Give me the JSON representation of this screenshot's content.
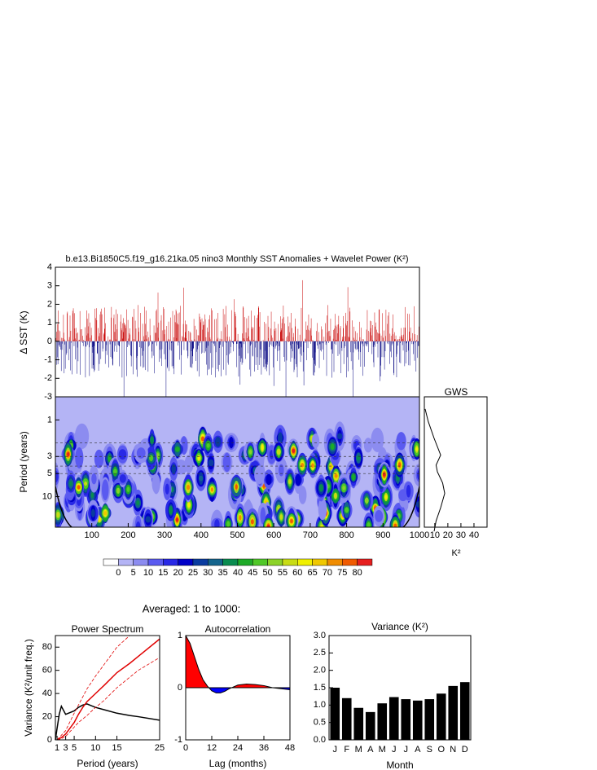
{
  "heading": "Averaged: 1 to 1000:",
  "chart_data": [
    {
      "type": "line",
      "title": "b.e13.Bi1850C5.f19_g16.21ka.05 nino3 Monthly SST Anomalies + Wavelet Power (K²)",
      "ylabel": "Δ SST (K)",
      "ylim": [
        -3,
        4
      ],
      "yticks": [
        -3,
        -2,
        -1,
        0,
        1,
        2,
        3,
        4
      ],
      "colors": [
        "#c80000",
        "#000080"
      ]
    },
    {
      "type": "heatmap",
      "ylabel": "Period (years)",
      "xlim": [
        0,
        1000
      ],
      "xticks": [
        100,
        200,
        300,
        400,
        500,
        600,
        700,
        800,
        900,
        1000
      ],
      "ylim": [
        0.5,
        25
      ],
      "yticks": [
        1,
        3,
        5,
        10
      ],
      "log_y": true,
      "levels": [
        0,
        5,
        10,
        15,
        20,
        25,
        30,
        35,
        40,
        45,
        50,
        55,
        60,
        65,
        70,
        75,
        80
      ],
      "colors": [
        "#ffffff",
        "#b4b4f5",
        "#8c8cf0",
        "#5a5af0",
        "#2828e6",
        "#0000c8",
        "#0a3ca0",
        "#14648c",
        "#0a8c50",
        "#1eaa28",
        "#50c828",
        "#8cd228",
        "#c8dc14",
        "#f0f000",
        "#f0c800",
        "#f08c00",
        "#f05a00",
        "#e61e1e"
      ]
    },
    {
      "type": "line",
      "title": "GWS",
      "xlabel": "K²",
      "xlim": [
        2,
        50
      ],
      "xticks": [
        10,
        20,
        30,
        40
      ],
      "ylim": [
        0.5,
        25
      ],
      "log_y": true,
      "y": [
        0.72,
        1.05,
        1.74,
        2.87,
        3.88,
        4.75,
        6.63,
        9.07,
        13.9,
        20.7,
        28.3
      ],
      "values": [
        2.6,
        5,
        9.5,
        14.5,
        11,
        12,
        16,
        17.6,
        14.5,
        11,
        9.5
      ],
      "color": "#000000"
    },
    {
      "type": "line",
      "title": "Power Spectrum",
      "xlabel": "Period (years)",
      "ylabel": "Variance (K²/unit freq.)",
      "xlim": [
        0.6,
        25
      ],
      "xticks": [
        1,
        3,
        5,
        10,
        15,
        25
      ],
      "ylim": [
        0,
        90
      ],
      "yticks": [
        0,
        20,
        40,
        60,
        80
      ],
      "x": [
        0.6,
        1,
        1.5,
        2,
        3,
        5,
        6,
        7,
        8,
        10,
        12,
        15,
        18,
        20,
        25
      ],
      "series": [
        {
          "color": "#000000",
          "values": [
            0,
            10,
            22,
            29,
            22,
            25,
            28,
            30,
            31,
            28,
            26,
            23,
            21,
            20,
            17
          ]
        },
        {
          "color": "#e00000",
          "values": [
            null,
            0,
            1,
            2,
            5,
            15,
            22,
            28,
            33,
            40,
            47,
            58,
            66,
            72,
            87
          ]
        },
        {
          "color": "#e00000",
          "dashed": true,
          "values": [
            null,
            0,
            2,
            4,
            8,
            23,
            30,
            37,
            44,
            55,
            65,
            80,
            90,
            null,
            null
          ]
        },
        {
          "color": "#e00000",
          "dashed": true,
          "values": [
            null,
            0,
            0.5,
            1,
            3,
            11,
            15,
            18,
            21,
            28,
            34,
            45,
            54,
            60,
            71
          ]
        }
      ]
    },
    {
      "type": "area",
      "title": "Autocorrelation",
      "xlabel": "Lag (months)",
      "xlim": [
        0,
        48
      ],
      "xticks": [
        0,
        12,
        24,
        36,
        48
      ],
      "ylim": [
        -1,
        1
      ],
      "yticks": [
        -1,
        0,
        1
      ],
      "x": [
        0,
        2,
        4,
        6,
        8,
        10,
        12,
        14,
        16,
        18,
        20,
        24,
        28,
        32,
        36,
        40,
        44,
        48
      ],
      "values": [
        1,
        0.85,
        0.6,
        0.35,
        0.15,
        0.03,
        -0.06,
        -0.1,
        -0.1,
        -0.07,
        -0.02,
        0.05,
        0.07,
        0.06,
        0.04,
        0,
        -0.02,
        -0.04
      ],
      "colors": [
        "#ff0000",
        "#0000ff"
      ]
    },
    {
      "type": "bar",
      "title": "Variance (K²)",
      "xlabel": "Month",
      "categories": [
        "J",
        "F",
        "M",
        "A",
        "M",
        "J",
        "J",
        "A",
        "S",
        "O",
        "N",
        "D"
      ],
      "values": [
        1.5,
        1.2,
        0.92,
        0.8,
        1.05,
        1.23,
        1.17,
        1.13,
        1.17,
        1.33,
        1.55,
        1.66
      ],
      "color": "#000000",
      "ylim": [
        0,
        3
      ],
      "yticks": [
        {
          "value": 0,
          "label": "0.0"
        },
        0.5,
        {
          "value": 1,
          "label": "1.0"
        },
        1.5,
        {
          "value": 2,
          "label": "2.0"
        },
        2.5,
        {
          "value": 3,
          "label": "3.0"
        }
      ]
    }
  ]
}
